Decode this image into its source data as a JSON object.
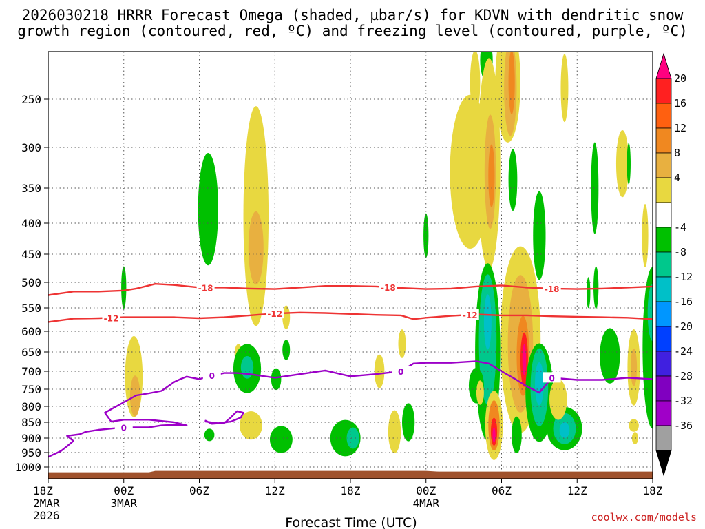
{
  "chart_data": {
    "type": "heatmap",
    "title_line1": "2026030218 HRRR Forecast Omega (shaded, µbar/s) for KDVN with dendritic snow",
    "title_line2": "growth region (contoured, red, ºC) and freezing level (contoured, purple, ºC)",
    "xlabel": "Forecast Time (UTC)",
    "ylabel": "",
    "credit": "coolwx.com/models",
    "x_range_hours": [
      0,
      48
    ],
    "y_range_hpa": [
      1030,
      165
    ],
    "y_ticks": [
      "250",
      "300",
      "350",
      "400",
      "450",
      "500",
      "550",
      "600",
      "650",
      "700",
      "750",
      "800",
      "850",
      "900",
      "950",
      "1000"
    ],
    "x_ticks": [
      {
        "hour": 0,
        "label": "18Z",
        "sub1": "2MAR",
        "sub2": "2026"
      },
      {
        "hour": 6,
        "label": "00Z",
        "sub1": "3MAR",
        "sub2": ""
      },
      {
        "hour": 12,
        "label": "06Z",
        "sub1": "",
        "sub2": ""
      },
      {
        "hour": 18,
        "label": "12Z",
        "sub1": "",
        "sub2": ""
      },
      {
        "hour": 24,
        "label": "18Z",
        "sub1": "",
        "sub2": ""
      },
      {
        "hour": 30,
        "label": "00Z",
        "sub1": "4MAR",
        "sub2": ""
      },
      {
        "hour": 36,
        "label": "06Z",
        "sub1": "",
        "sub2": ""
      },
      {
        "hour": 42,
        "label": "12Z",
        "sub1": "",
        "sub2": ""
      },
      {
        "hour": 48,
        "label": "18Z",
        "sub1": "",
        "sub2": ""
      }
    ],
    "colorbar": {
      "labels": [
        "20",
        "16",
        "12",
        "8",
        "4",
        "-4",
        "-8",
        "-12",
        "-16",
        "-20",
        "-24",
        "-28",
        "-32",
        "-36"
      ],
      "colors": [
        "#ff0080",
        "#ff2020",
        "#ff6010",
        "#f08820",
        "#e8b040",
        "#e8d840",
        "#ffffff",
        "#00c000",
        "#00c88c",
        "#00c0c8",
        "#0096ff",
        "#0040ff",
        "#4020e0",
        "#8000c0",
        "#a000c8",
        "#a0a0a0",
        "#000000"
      ]
    },
    "isotherms": [
      {
        "name": "dgz-top",
        "label": "-18",
        "color": "#ee3333",
        "points": [
          [
            0,
            525
          ],
          [
            2,
            518
          ],
          [
            4,
            518
          ],
          [
            6,
            516
          ],
          [
            7,
            512
          ],
          [
            8.5,
            503
          ],
          [
            10,
            505
          ],
          [
            12,
            510
          ],
          [
            14,
            510
          ],
          [
            16,
            512
          ],
          [
            18,
            513
          ],
          [
            20,
            510
          ],
          [
            22,
            507
          ],
          [
            24,
            507
          ],
          [
            26,
            508
          ],
          [
            28,
            511
          ],
          [
            30,
            513
          ],
          [
            32,
            512
          ],
          [
            34,
            508
          ],
          [
            36,
            506
          ],
          [
            38,
            510
          ],
          [
            40,
            512
          ],
          [
            42,
            513
          ],
          [
            44,
            512
          ],
          [
            46,
            510
          ],
          [
            48,
            508
          ]
        ],
        "label_hours": [
          12.5,
          27,
          40
        ]
      },
      {
        "name": "dgz-bottom",
        "label": "-12",
        "color": "#ee3333",
        "points": [
          [
            0,
            580
          ],
          [
            2,
            573
          ],
          [
            4,
            572
          ],
          [
            6,
            570
          ],
          [
            8,
            570
          ],
          [
            10,
            570
          ],
          [
            12,
            572
          ],
          [
            14,
            570
          ],
          [
            16,
            566
          ],
          [
            18,
            562
          ],
          [
            20,
            560
          ],
          [
            22,
            561
          ],
          [
            24,
            563
          ],
          [
            26,
            565
          ],
          [
            28,
            566
          ],
          [
            29,
            574
          ],
          [
            30,
            571
          ],
          [
            32,
            567
          ],
          [
            34,
            564
          ],
          [
            36,
            566
          ],
          [
            38,
            566
          ],
          [
            40,
            568
          ],
          [
            42,
            569
          ],
          [
            44,
            570
          ],
          [
            46,
            571
          ],
          [
            48,
            574
          ]
        ],
        "label_hours": [
          5,
          18,
          33.5
        ]
      },
      {
        "name": "freezing-level",
        "label": "0",
        "color": "#9c00c8",
        "points": [
          [
            0,
            965
          ],
          [
            1,
            945
          ],
          [
            1.5,
            928
          ],
          [
            2,
            910
          ],
          [
            1.5,
            893
          ],
          [
            2.5,
            888
          ],
          [
            3,
            880
          ],
          [
            4,
            874
          ],
          [
            5,
            870
          ],
          [
            6,
            866
          ],
          [
            7,
            866
          ],
          [
            8,
            866
          ],
          [
            9,
            860
          ],
          [
            10,
            858
          ],
          [
            11,
            860
          ],
          [
            10,
            850
          ],
          [
            8,
            842
          ],
          [
            6,
            842
          ],
          [
            5,
            848
          ],
          [
            4.5,
            820
          ],
          [
            6,
            788
          ],
          [
            7,
            768
          ],
          [
            8,
            762
          ],
          [
            9,
            755
          ],
          [
            10,
            730
          ],
          [
            10.5,
            722
          ],
          [
            11,
            715
          ],
          [
            12,
            722
          ],
          [
            13,
            712
          ],
          [
            14,
            705
          ],
          [
            15,
            705
          ],
          [
            16,
            708
          ],
          [
            18,
            718
          ],
          [
            20,
            708
          ],
          [
            22,
            698
          ],
          [
            24,
            714
          ],
          [
            26,
            708
          ],
          [
            28,
            700
          ],
          [
            29,
            680
          ],
          [
            30,
            678
          ],
          [
            32,
            678
          ],
          [
            34,
            674
          ],
          [
            35,
            680
          ],
          [
            36,
            700
          ],
          [
            37,
            720
          ],
          [
            38,
            742
          ],
          [
            39,
            760
          ],
          [
            40,
            718
          ],
          [
            42,
            724
          ],
          [
            44,
            724
          ],
          [
            46,
            718
          ],
          [
            48,
            722
          ]
        ],
        "label_hours": [
          6,
          13,
          28,
          40
        ]
      },
      {
        "name": "freezing-level-loop",
        "label": "",
        "color": "#9c00c8",
        "points": [
          [
            12.5,
            845
          ],
          [
            13,
            855
          ],
          [
            14,
            852
          ],
          [
            14.5,
            835
          ],
          [
            15,
            815
          ],
          [
            15.5,
            820
          ],
          [
            15.3,
            835
          ],
          [
            14.5,
            848
          ],
          [
            13.5,
            853
          ],
          [
            12.5,
            848
          ]
        ],
        "label_hours": []
      }
    ],
    "omega_blobs": [
      {
        "hour": 6.8,
        "hpa": 715,
        "dh": 0.7,
        "dp": 110,
        "color": "#e8d840"
      },
      {
        "hour": 6.9,
        "hpa": 770,
        "dh": 0.4,
        "dp": 60,
        "color": "#e8b040"
      },
      {
        "hour": 6.0,
        "hpa": 510,
        "dh": 0.2,
        "dp": 40,
        "color": "#00c000"
      },
      {
        "hour": 12.7,
        "hpa": 380,
        "dh": 0.8,
        "dp": 80,
        "color": "#00c000"
      },
      {
        "hour": 16.5,
        "hpa": 390,
        "dh": 1.0,
        "dp": 160,
        "color": "#e8d840"
      },
      {
        "hour": 16.5,
        "hpa": 440,
        "dh": 0.6,
        "dp": 60,
        "color": "#e8b040"
      },
      {
        "hour": 18.9,
        "hpa": 570,
        "dh": 0.3,
        "dp": 25,
        "color": "#e8d840"
      },
      {
        "hour": 15.1,
        "hpa": 655,
        "dh": 0.3,
        "dp": 25,
        "color": "#e8d840"
      },
      {
        "hour": 15.8,
        "hpa": 693,
        "dh": 1.1,
        "dp": 65,
        "color": "#00c000"
      },
      {
        "hour": 15.8,
        "hpa": 690,
        "dh": 0.5,
        "dp": 30,
        "color": "#00c88c"
      },
      {
        "hour": 18.1,
        "hpa": 722,
        "dh": 0.4,
        "dp": 30,
        "color": "#00c000"
      },
      {
        "hour": 18.9,
        "hpa": 645,
        "dh": 0.3,
        "dp": 25,
        "color": "#00c000"
      },
      {
        "hour": 16.1,
        "hpa": 860,
        "dh": 0.9,
        "dp": 45,
        "color": "#e8d840"
      },
      {
        "hour": 12.8,
        "hpa": 890,
        "dh": 0.4,
        "dp": 20,
        "color": "#00c000"
      },
      {
        "hour": 18.5,
        "hpa": 905,
        "dh": 0.9,
        "dp": 45,
        "color": "#00c000"
      },
      {
        "hour": 23.6,
        "hpa": 900,
        "dh": 1.2,
        "dp": 60,
        "color": "#00c000"
      },
      {
        "hour": 24.2,
        "hpa": 900,
        "dh": 0.5,
        "dp": 35,
        "color": "#00c88c"
      },
      {
        "hour": 26.3,
        "hpa": 700,
        "dh": 0.4,
        "dp": 45,
        "color": "#e8d840"
      },
      {
        "hour": 27.5,
        "hpa": 880,
        "dh": 0.5,
        "dp": 70,
        "color": "#e8d840"
      },
      {
        "hour": 28.1,
        "hpa": 630,
        "dh": 0.3,
        "dp": 35,
        "color": "#e8d840"
      },
      {
        "hour": 28.6,
        "hpa": 850,
        "dh": 0.5,
        "dp": 60,
        "color": "#00c000"
      },
      {
        "hour": 33.5,
        "hpa": 330,
        "dh": 1.6,
        "dp": 100,
        "color": "#e8d840"
      },
      {
        "hour": 33.9,
        "hpa": 220,
        "dh": 0.4,
        "dp": 50,
        "color": "#e8d840"
      },
      {
        "hour": 34.8,
        "hpa": 180,
        "dh": 0.5,
        "dp": 60,
        "color": "#00c000"
      },
      {
        "hour": 35.0,
        "hpa": 320,
        "dh": 0.9,
        "dp": 150,
        "color": "#e8d840"
      },
      {
        "hour": 35.1,
        "hpa": 330,
        "dh": 0.45,
        "dp": 70,
        "color": "#e8b040"
      },
      {
        "hour": 35.2,
        "hpa": 335,
        "dh": 0.25,
        "dp": 40,
        "color": "#f08820"
      },
      {
        "hour": 36.5,
        "hpa": 220,
        "dh": 1.0,
        "dp": 110,
        "color": "#e8d840"
      },
      {
        "hour": 36.7,
        "hpa": 230,
        "dh": 0.5,
        "dp": 70,
        "color": "#e8b040"
      },
      {
        "hour": 36.8,
        "hpa": 220,
        "dh": 0.25,
        "dp": 50,
        "color": "#f08820"
      },
      {
        "hour": 34.9,
        "hpa": 650,
        "dh": 1.0,
        "dp": 210,
        "color": "#00c000"
      },
      {
        "hour": 34.9,
        "hpa": 620,
        "dh": 0.7,
        "dp": 150,
        "color": "#00c88c"
      },
      {
        "hour": 34.9,
        "hpa": 580,
        "dh": 0.3,
        "dp": 60,
        "color": "#00c0c8"
      },
      {
        "hour": 34.0,
        "hpa": 740,
        "dh": 0.6,
        "dp": 50,
        "color": "#00c000"
      },
      {
        "hour": 36.9,
        "hpa": 340,
        "dh": 0.35,
        "dp": 40,
        "color": "#00c000"
      },
      {
        "hour": 37.5,
        "hpa": 620,
        "dh": 1.6,
        "dp": 210,
        "color": "#e8d840"
      },
      {
        "hour": 37.5,
        "hpa": 630,
        "dh": 1.0,
        "dp": 160,
        "color": "#e8b040"
      },
      {
        "hour": 37.7,
        "hpa": 660,
        "dh": 0.5,
        "dp": 100,
        "color": "#f08820"
      },
      {
        "hour": 37.8,
        "hpa": 670,
        "dh": 0.3,
        "dp": 70,
        "color": "#ff2020"
      },
      {
        "hour": 37.8,
        "hpa": 670,
        "dh": 0.15,
        "dp": 40,
        "color": "#ff0080"
      },
      {
        "hour": 39.0,
        "hpa": 760,
        "dh": 1.1,
        "dp": 140,
        "color": "#00c000"
      },
      {
        "hour": 39.0,
        "hpa": 745,
        "dh": 0.7,
        "dp": 110,
        "color": "#00c88c"
      },
      {
        "hour": 39.0,
        "hpa": 735,
        "dh": 0.35,
        "dp": 60,
        "color": "#00c0c8"
      },
      {
        "hour": 39.0,
        "hpa": 420,
        "dh": 0.5,
        "dp": 70,
        "color": "#00c000"
      },
      {
        "hour": 37.2,
        "hpa": 890,
        "dh": 0.4,
        "dp": 60,
        "color": "#00c000"
      },
      {
        "hour": 35.4,
        "hpa": 860,
        "dh": 0.7,
        "dp": 110,
        "color": "#e8d840"
      },
      {
        "hour": 35.4,
        "hpa": 860,
        "dh": 0.45,
        "dp": 80,
        "color": "#f08820"
      },
      {
        "hour": 35.4,
        "hpa": 880,
        "dh": 0.25,
        "dp": 45,
        "color": "#ff2020"
      },
      {
        "hour": 35.4,
        "hpa": 890,
        "dh": 0.12,
        "dp": 25,
        "color": "#ff0080"
      },
      {
        "hour": 34.3,
        "hpa": 760,
        "dh": 0.3,
        "dp": 35,
        "color": "#e8d840"
      },
      {
        "hour": 41.0,
        "hpa": 870,
        "dh": 1.4,
        "dp": 70,
        "color": "#00c000"
      },
      {
        "hour": 41.0,
        "hpa": 870,
        "dh": 0.9,
        "dp": 50,
        "color": "#00c88c"
      },
      {
        "hour": 41.0,
        "hpa": 875,
        "dh": 0.4,
        "dp": 25,
        "color": "#00c0c8"
      },
      {
        "hour": 40.5,
        "hpa": 780,
        "dh": 0.7,
        "dp": 60,
        "color": "#e8d840"
      },
      {
        "hour": 41.0,
        "hpa": 230,
        "dh": 0.3,
        "dp": 50,
        "color": "#e8d840"
      },
      {
        "hour": 43.4,
        "hpa": 350,
        "dh": 0.3,
        "dp": 60,
        "color": "#00c000"
      },
      {
        "hour": 43.5,
        "hpa": 510,
        "dh": 0.2,
        "dp": 40,
        "color": "#00c000"
      },
      {
        "hour": 44.6,
        "hpa": 660,
        "dh": 0.8,
        "dp": 70,
        "color": "#00c000"
      },
      {
        "hour": 46.5,
        "hpa": 690,
        "dh": 0.5,
        "dp": 100,
        "color": "#e8d840"
      },
      {
        "hour": 46.5,
        "hpa": 690,
        "dh": 0.25,
        "dp": 50,
        "color": "#e8b040"
      },
      {
        "hour": 46.5,
        "hpa": 860,
        "dh": 0.4,
        "dp": 20,
        "color": "#e8d840"
      },
      {
        "hour": 46.6,
        "hpa": 900,
        "dh": 0.25,
        "dp": 20,
        "color": "#e8d840"
      },
      {
        "hour": 48.0,
        "hpa": 640,
        "dh": 0.8,
        "dp": 190,
        "color": "#00c000"
      },
      {
        "hour": 48.0,
        "hpa": 560,
        "dh": 0.4,
        "dp": 60,
        "color": "#00c88c"
      },
      {
        "hour": 47.4,
        "hpa": 420,
        "dh": 0.25,
        "dp": 50,
        "color": "#e8d840"
      },
      {
        "hour": 45.6,
        "hpa": 320,
        "dh": 0.5,
        "dp": 40,
        "color": "#e8d840"
      },
      {
        "hour": 46.1,
        "hpa": 320,
        "dh": 0.15,
        "dp": 25,
        "color": "#00c000"
      },
      {
        "hour": 42.9,
        "hpa": 520,
        "dh": 0.15,
        "dp": 30,
        "color": "#00c000"
      },
      {
        "hour": 30.0,
        "hpa": 420,
        "dh": 0.2,
        "dp": 35,
        "color": "#00c000"
      }
    ],
    "terrain": {
      "label": "surface",
      "color": "#a0522d",
      "hpa_top": 1010
    }
  }
}
